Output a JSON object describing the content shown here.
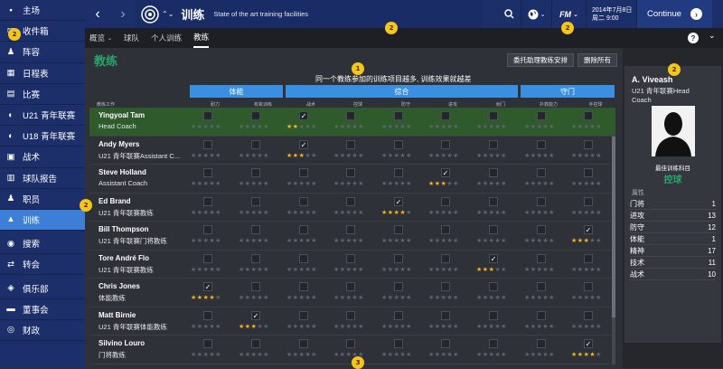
{
  "sidebar": {
    "items": [
      {
        "label": "主场",
        "icon": "home-icon"
      },
      {
        "label": "收件箱",
        "icon": "inbox-icon"
      },
      {
        "label": "阵容",
        "icon": "squad-icon"
      },
      {
        "label": "日程表",
        "icon": "calendar-icon"
      },
      {
        "label": "比赛",
        "icon": "match-icon"
      },
      {
        "label": "U21 青年联赛",
        "icon": "u21-icon"
      },
      {
        "label": "U18 青年联赛",
        "icon": "u18-icon"
      },
      {
        "label": "战术",
        "icon": "tactics-icon"
      },
      {
        "label": "球队报告",
        "icon": "report-icon"
      },
      {
        "label": "职员",
        "icon": "staff-icon"
      },
      {
        "label": "训练",
        "icon": "training-icon"
      },
      {
        "label": "搜索",
        "icon": "search-icon"
      },
      {
        "label": "转会",
        "icon": "transfer-icon"
      },
      {
        "label": "俱乐部",
        "icon": "club-icon"
      },
      {
        "label": "董事会",
        "icon": "board-icon"
      },
      {
        "label": "财政",
        "icon": "finance-icon"
      }
    ]
  },
  "header": {
    "title": "训练",
    "subtitle": "State of the art training facilities",
    "logo": "FM",
    "date_line1": "2014年7月8日",
    "date_line2": "周二 9:00",
    "continue_label": "Continue"
  },
  "tabs": [
    {
      "label": "概览"
    },
    {
      "label": "球队"
    },
    {
      "label": "个人训练"
    },
    {
      "label": "教练"
    }
  ],
  "page": {
    "title": "教练",
    "btn_assign": "委托助理教练安排",
    "btn_remove": "删除所有",
    "info": "同一个教练参加的训练项目越多, 训练效果就越差"
  },
  "categories": [
    {
      "label": "体能"
    },
    {
      "label": "综合"
    },
    {
      "label": "守门"
    }
  ],
  "subcols": [
    "耐力",
    "有氧训练",
    "战术",
    "控球",
    "防守",
    "进攻",
    "射门",
    "扑救能力",
    "手控球"
  ],
  "column_header": "教练工作",
  "coaches": [
    {
      "name": "Yingyoal Tam",
      "role": "Head Coach",
      "check": 2,
      "stars": [
        3,
        3,
        2,
        3,
        3,
        3,
        3,
        3,
        3
      ]
    },
    {
      "name": "Andy Myers",
      "role": "U21 青年联赛Assistant C...",
      "check": 2,
      "stars": [
        3,
        3,
        3,
        3,
        3,
        3,
        3,
        3,
        3
      ]
    },
    {
      "name": "Steve Holland",
      "role": "Assistant Coach",
      "check": 5,
      "stars": [
        3,
        3,
        3,
        3,
        3,
        3,
        3,
        3,
        3
      ]
    },
    {
      "name": "Ed Brand",
      "role": "U21 青年联赛教练",
      "check": 4,
      "stars": [
        3,
        3,
        3,
        3,
        4,
        3,
        3,
        3,
        3
      ]
    },
    {
      "name": "Bill Thompson",
      "role": "U21 青年联赛门将教练",
      "check": 8,
      "stars": [
        1,
        1,
        1,
        1,
        1,
        1,
        1,
        3,
        3
      ]
    },
    {
      "name": "Tore André Flo",
      "role": "U21 青年联赛教练",
      "check": 6,
      "stars": [
        3,
        3,
        3,
        3,
        3,
        3,
        3,
        3,
        3
      ]
    },
    {
      "name": "Chris Jones",
      "role": "体能教练",
      "check": 0,
      "stars": [
        4,
        3,
        1,
        1,
        1,
        1,
        1,
        1,
        1
      ]
    },
    {
      "name": "Matt Birnie",
      "role": "U21 青年联赛体能教练",
      "check": 1,
      "stars": [
        3,
        3,
        1,
        1,
        1,
        1,
        1,
        1,
        1
      ]
    },
    {
      "name": "Silvino Louro",
      "role": "门将教练",
      "check": 8,
      "stars": [
        1,
        1,
        1,
        1,
        1,
        1,
        1,
        4,
        4
      ]
    }
  ],
  "panel": {
    "name": "A. Viveash",
    "role": "U21 青年联赛Head Coach",
    "best_label": "最佳训练科目",
    "best_value": "控球",
    "attr_label": "属性",
    "attributes": [
      {
        "name": "门将",
        "value": "1"
      },
      {
        "name": "进攻",
        "value": "13"
      },
      {
        "name": "防守",
        "value": "12"
      },
      {
        "name": "体能",
        "value": "1"
      },
      {
        "name": "精神",
        "value": "17"
      },
      {
        "name": "技术",
        "value": "11"
      },
      {
        "name": "战术",
        "value": "10"
      }
    ]
  },
  "markers": [
    "1",
    "2",
    "2",
    "2",
    "2",
    "2",
    "3"
  ]
}
